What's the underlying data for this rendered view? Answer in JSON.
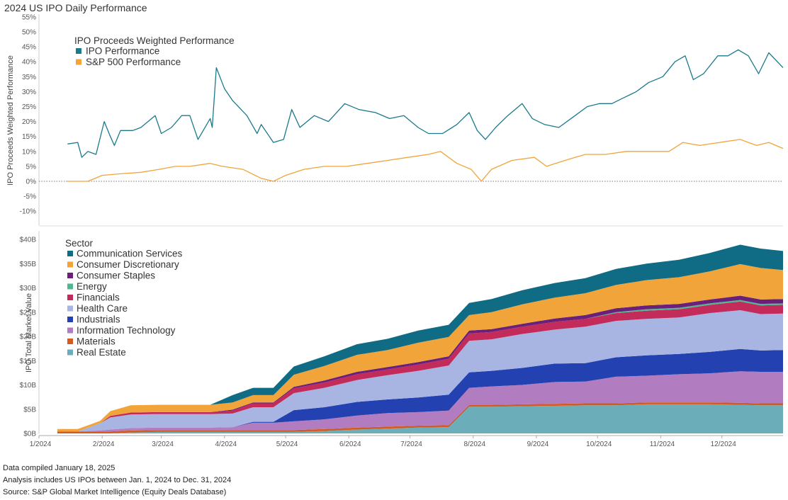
{
  "page": {
    "title": "2024 US IPO Daily Performance",
    "footnotes": [
      "Data compiled January 18, 2025",
      "Analysis includes US IPOs between Jan. 1, 2024 to Dec. 31, 2024",
      "Source: S&P Global Market Intelligence (Equity Deals Database)"
    ]
  },
  "chart_data": [
    {
      "type": "line",
      "ylabel": "IPO Proceeds Weighted Performance",
      "legend_title": "IPO Proceeds Weighted Performance",
      "legend_position": "top-left",
      "ylim": [
        -10,
        55
      ],
      "y_ticks": [
        "55%",
        "50%",
        "45%",
        "40%",
        "35%",
        "30%",
        "25%",
        "20%",
        "15%",
        "10%",
        "5%",
        "0%",
        "-5%",
        "-10%"
      ],
      "zero_line": true,
      "grid": false,
      "series": [
        {
          "name": "IPO Performance",
          "color": "#1a7a8c",
          "points": [
            [
              "2024-01-15",
              12.5
            ],
            [
              "2024-01-20",
              13
            ],
            [
              "2024-01-22",
              8
            ],
            [
              "2024-01-25",
              10
            ],
            [
              "2024-01-29",
              9
            ],
            [
              "2024-02-02",
              20
            ],
            [
              "2024-02-05",
              15
            ],
            [
              "2024-02-07",
              12
            ],
            [
              "2024-02-10",
              17
            ],
            [
              "2024-02-16",
              17
            ],
            [
              "2024-02-20",
              18
            ],
            [
              "2024-02-27",
              22
            ],
            [
              "2024-03-01",
              16
            ],
            [
              "2024-03-06",
              18
            ],
            [
              "2024-03-11",
              22
            ],
            [
              "2024-03-15",
              22
            ],
            [
              "2024-03-19",
              14
            ],
            [
              "2024-03-25",
              21
            ],
            [
              "2024-03-26",
              18
            ],
            [
              "2024-03-28",
              38
            ],
            [
              "2024-04-01",
              31
            ],
            [
              "2024-04-05",
              27
            ],
            [
              "2024-04-12",
              22
            ],
            [
              "2024-04-17",
              16
            ],
            [
              "2024-04-19",
              19
            ],
            [
              "2024-04-25",
              13
            ],
            [
              "2024-04-30",
              14
            ],
            [
              "2024-05-04",
              24
            ],
            [
              "2024-05-08",
              18
            ],
            [
              "2024-05-15",
              22
            ],
            [
              "2024-05-22",
              20
            ],
            [
              "2024-05-30",
              26
            ],
            [
              "2024-06-06",
              24
            ],
            [
              "2024-06-14",
              23
            ],
            [
              "2024-06-21",
              21
            ],
            [
              "2024-06-28",
              22
            ],
            [
              "2024-07-05",
              18
            ],
            [
              "2024-07-10",
              16
            ],
            [
              "2024-07-17",
              16
            ],
            [
              "2024-07-24",
              19
            ],
            [
              "2024-07-30",
              23
            ],
            [
              "2024-08-03",
              17
            ],
            [
              "2024-08-07",
              14
            ],
            [
              "2024-08-12",
              18
            ],
            [
              "2024-08-18",
              22
            ],
            [
              "2024-08-25",
              26
            ],
            [
              "2024-08-30",
              21
            ],
            [
              "2024-09-05",
              19
            ],
            [
              "2024-09-12",
              18
            ],
            [
              "2024-09-20",
              22
            ],
            [
              "2024-09-26",
              25
            ],
            [
              "2024-10-02",
              26
            ],
            [
              "2024-10-08",
              26
            ],
            [
              "2024-10-14",
              28
            ],
            [
              "2024-10-20",
              30
            ],
            [
              "2024-10-26",
              33
            ],
            [
              "2024-11-02",
              35
            ],
            [
              "2024-11-08",
              40
            ],
            [
              "2024-11-13",
              42
            ],
            [
              "2024-11-17",
              34
            ],
            [
              "2024-11-22",
              36
            ],
            [
              "2024-11-29",
              42
            ],
            [
              "2024-12-04",
              42
            ],
            [
              "2024-12-09",
              44
            ],
            [
              "2024-12-14",
              42
            ],
            [
              "2024-12-19",
              36
            ],
            [
              "2024-12-24",
              43
            ],
            [
              "2024-12-31",
              38
            ]
          ]
        },
        {
          "name": "S&P 500 Performance",
          "color": "#f0a43a",
          "points": [
            [
              "2024-01-15",
              0
            ],
            [
              "2024-01-25",
              0
            ],
            [
              "2024-02-01",
              2
            ],
            [
              "2024-02-10",
              2.5
            ],
            [
              "2024-02-20",
              3
            ],
            [
              "2024-02-29",
              4
            ],
            [
              "2024-03-08",
              5
            ],
            [
              "2024-03-15",
              5
            ],
            [
              "2024-03-25",
              6
            ],
            [
              "2024-03-31",
              5
            ],
            [
              "2024-04-10",
              4
            ],
            [
              "2024-04-19",
              1
            ],
            [
              "2024-04-25",
              0
            ],
            [
              "2024-05-01",
              2
            ],
            [
              "2024-05-10",
              4
            ],
            [
              "2024-05-20",
              5
            ],
            [
              "2024-05-31",
              5
            ],
            [
              "2024-06-10",
              6
            ],
            [
              "2024-06-20",
              7
            ],
            [
              "2024-06-30",
              8
            ],
            [
              "2024-07-10",
              9
            ],
            [
              "2024-07-16",
              10
            ],
            [
              "2024-07-24",
              6
            ],
            [
              "2024-07-31",
              4
            ],
            [
              "2024-08-05",
              0
            ],
            [
              "2024-08-10",
              4
            ],
            [
              "2024-08-20",
              7
            ],
            [
              "2024-08-31",
              8
            ],
            [
              "2024-09-06",
              5
            ],
            [
              "2024-09-15",
              7
            ],
            [
              "2024-09-25",
              9
            ],
            [
              "2024-10-05",
              9
            ],
            [
              "2024-10-15",
              10
            ],
            [
              "2024-10-25",
              10
            ],
            [
              "2024-11-05",
              10
            ],
            [
              "2024-11-12",
              13
            ],
            [
              "2024-11-20",
              12
            ],
            [
              "2024-11-30",
              13
            ],
            [
              "2024-12-10",
              14
            ],
            [
              "2024-12-18",
              12
            ],
            [
              "2024-12-24",
              13
            ],
            [
              "2024-12-31",
              11
            ]
          ]
        }
      ]
    },
    {
      "type": "area",
      "stacked": true,
      "ylabel": "IPO Total Market Value",
      "legend_title": "Sector",
      "legend_position": "top-left",
      "ylim": [
        0,
        40
      ],
      "y_unit": "$B",
      "y_ticks": [
        "$40B",
        "$35B",
        "$30B",
        "$25B",
        "$20B",
        "$15B",
        "$10B",
        "$5B",
        "$0B"
      ],
      "x_ticks": [
        "1/2024",
        "2/2024",
        "3/2024",
        "4/2024",
        "5/2024",
        "6/2024",
        "7/2024",
        "8/2024",
        "9/2024",
        "10/2024",
        "11/2024",
        "12/2024"
      ],
      "x_dates": [
        "2024-01-01",
        "2024-12-31"
      ],
      "legend": [
        "Communication Services",
        "Consumer Discretionary",
        "Consumer Staples",
        "Energy",
        "Financials",
        "Health Care",
        "Industrials",
        "Information Technology",
        "Materials",
        "Real Estate"
      ],
      "x": [
        "2024-01-10",
        "2024-01-20",
        "2024-01-31",
        "2024-02-05",
        "2024-02-15",
        "2024-02-28",
        "2024-03-10",
        "2024-03-25",
        "2024-04-05",
        "2024-04-15",
        "2024-04-25",
        "2024-05-05",
        "2024-05-20",
        "2024-06-05",
        "2024-06-20",
        "2024-07-05",
        "2024-07-20",
        "2024-07-30",
        "2024-08-10",
        "2024-08-25",
        "2024-09-10",
        "2024-09-25",
        "2024-10-10",
        "2024-10-25",
        "2024-11-10",
        "2024-11-25",
        "2024-12-10",
        "2024-12-20",
        "2024-12-31"
      ],
      "series": [
        {
          "name": "Real Estate",
          "color": "#6badb8",
          "values": [
            0,
            0,
            0,
            0,
            0.2,
            0.3,
            0.3,
            0.3,
            0.3,
            0.3,
            0.3,
            0.3,
            0.5,
            0.8,
            1,
            1.2,
            1.3,
            5.5,
            5.5,
            5.6,
            5.7,
            5.8,
            5.8,
            6,
            6,
            6,
            5.9,
            5.8,
            5.8
          ]
        },
        {
          "name": "Materials",
          "color": "#d35a20",
          "values": [
            0.4,
            0.4,
            0.4,
            0.4,
            0.4,
            0.4,
            0.4,
            0.4,
            0.4,
            0.4,
            0.4,
            0.4,
            0.4,
            0.4,
            0.4,
            0.4,
            0.4,
            0.4,
            0.4,
            0.4,
            0.4,
            0.4,
            0.4,
            0.4,
            0.4,
            0.4,
            0.4,
            0.4,
            0.4
          ]
        },
        {
          "name": "Information Technology",
          "color": "#b27cc0",
          "values": [
            0,
            0,
            0.2,
            0.4,
            0.5,
            0.5,
            0.5,
            0.5,
            0.6,
            1.5,
            1.5,
            1.8,
            2,
            2.5,
            2.8,
            2.8,
            3,
            3.5,
            3.8,
            4,
            4.5,
            4.5,
            5.5,
            5.5,
            5.8,
            6,
            6.5,
            6.5,
            6.5
          ]
        },
        {
          "name": "Industrials",
          "color": "#2341b0",
          "values": [
            0,
            0,
            0,
            0,
            0,
            0,
            0,
            0,
            0,
            0.2,
            0.2,
            2.3,
            2.5,
            2.8,
            2.8,
            3,
            3.3,
            3.2,
            3.2,
            3.5,
            3.8,
            3.8,
            4,
            4.2,
            4.2,
            4.4,
            4.6,
            4.4,
            4.5
          ]
        },
        {
          "name": "Health Care",
          "color": "#a8b4e2",
          "values": [
            0,
            0,
            1.5,
            2.5,
            2.8,
            2.8,
            2.8,
            2.8,
            2.8,
            3,
            3,
            3.5,
            4,
            4.5,
            5,
            5.5,
            6,
            6.5,
            6.5,
            7,
            7,
            7.5,
            7.5,
            7.5,
            7.5,
            8,
            8,
            7.5,
            7.5
          ]
        },
        {
          "name": "Financials",
          "color": "#c22b5a",
          "values": [
            0,
            0,
            0,
            0.3,
            0.4,
            0.4,
            0.4,
            0.4,
            0.6,
            0.8,
            0.8,
            1,
            1.1,
            1.2,
            1.2,
            1.3,
            1.4,
            1.5,
            1.5,
            1.5,
            1.6,
            1.6,
            1.6,
            1.7,
            1.7,
            1.7,
            1.8,
            1.8,
            1.8
          ]
        },
        {
          "name": "Energy",
          "color": "#4db890",
          "values": [
            0,
            0,
            0,
            0,
            0,
            0,
            0,
            0,
            0,
            0,
            0,
            0,
            0,
            0,
            0,
            0,
            0,
            0,
            0,
            0,
            0,
            0,
            0.2,
            0.3,
            0.3,
            0.3,
            0.3,
            0.3,
            0.3
          ]
        },
        {
          "name": "Consumer Staples",
          "color": "#6a1f7a",
          "values": [
            0,
            0,
            0,
            0,
            0,
            0,
            0,
            0,
            0.2,
            0.2,
            0.2,
            0.3,
            0.4,
            0.5,
            0.5,
            0.5,
            0.5,
            0.6,
            0.6,
            0.6,
            0.7,
            0.8,
            0.8,
            0.8,
            0.8,
            0.8,
            0.9,
            0.9,
            0.9
          ]
        },
        {
          "name": "Consumer Discretionary",
          "color": "#f0a43a",
          "values": [
            0.5,
            0.5,
            0.5,
            1,
            1.5,
            1.5,
            1.5,
            1.5,
            1.5,
            1.5,
            1.5,
            2.5,
            3,
            3.5,
            3.5,
            4,
            4,
            3.2,
            3.5,
            4,
            4.3,
            4.5,
            4.8,
            5.2,
            5.5,
            5.8,
            6.5,
            6.5,
            6
          ]
        },
        {
          "name": "Communication Services",
          "color": "#0f6c84",
          "values": [
            0,
            0,
            0,
            0,
            0,
            0,
            0,
            0,
            1.5,
            1.5,
            1.5,
            1.7,
            2,
            2.2,
            2.3,
            2.5,
            2.5,
            2.5,
            2.7,
            2.9,
            3,
            3.1,
            3.3,
            3.4,
            3.6,
            3.8,
            4,
            4,
            3.9
          ]
        }
      ]
    }
  ]
}
